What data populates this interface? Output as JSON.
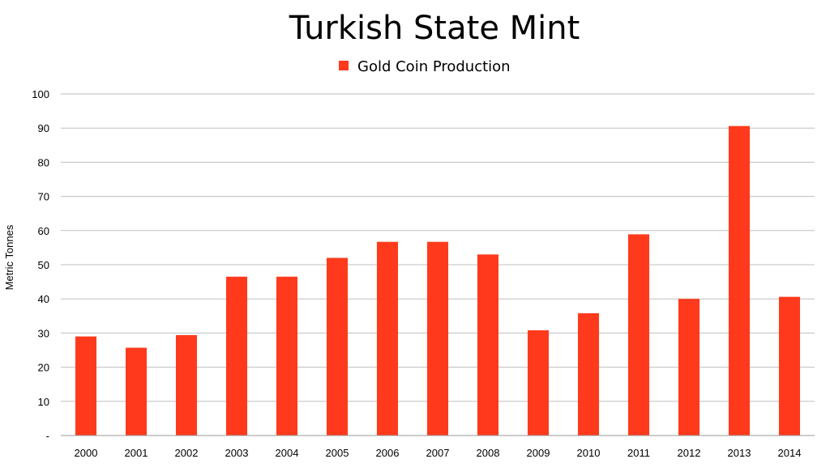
{
  "chart_data": {
    "type": "bar",
    "title": "Turkish State Mint",
    "ylabel": "Metric Tonnes",
    "xlabel": "",
    "ylim": [
      0,
      100
    ],
    "y_ticks": [
      0,
      10,
      20,
      30,
      40,
      50,
      60,
      70,
      80,
      90,
      100
    ],
    "y_tick_labels": [
      "-",
      "10",
      "20",
      "30",
      "40",
      "50",
      "60",
      "70",
      "80",
      "90",
      "100"
    ],
    "grid": true,
    "legend_position": "top-center",
    "bar_color": "#ff3a1c",
    "categories": [
      "2000",
      "2001",
      "2002",
      "2003",
      "2004",
      "2005",
      "2006",
      "2007",
      "2008",
      "2009",
      "2010",
      "2011",
      "2012",
      "2013",
      "2014"
    ],
    "series": [
      {
        "name": "Gold Coin Production",
        "values": [
          29,
          25.7,
          29.4,
          46.5,
          46.5,
          52,
          56.7,
          56.7,
          53,
          30.8,
          35.8,
          58.9,
          40,
          90.6,
          40.6
        ]
      }
    ]
  }
}
